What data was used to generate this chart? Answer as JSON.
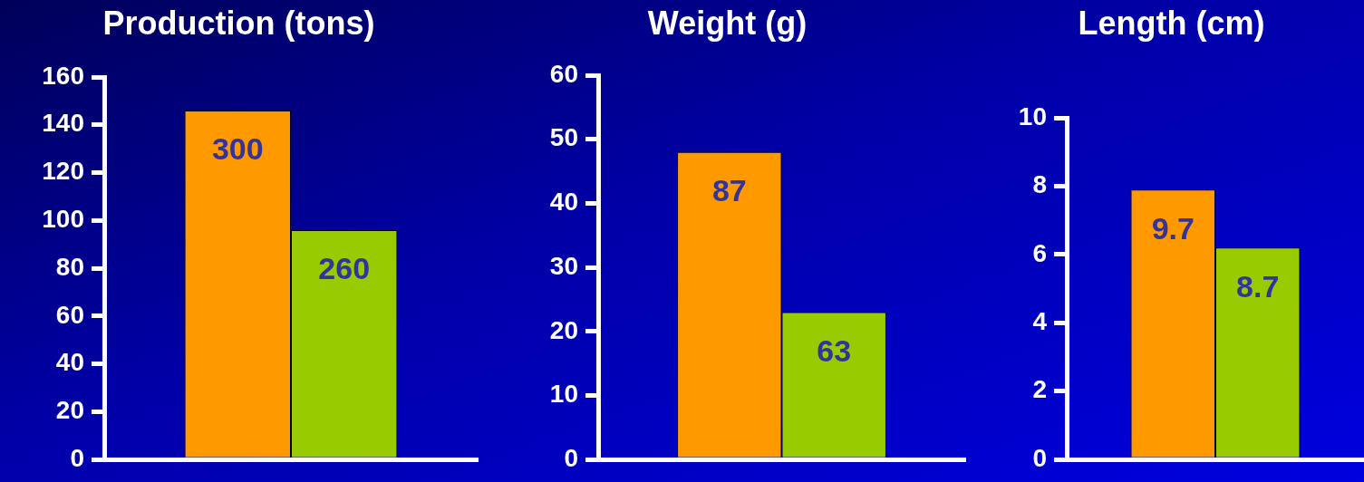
{
  "chart_data": [
    {
      "type": "bar",
      "title": "Production (tons)",
      "categories": [
        null,
        null
      ],
      "values": [
        146,
        96
      ],
      "colors": [
        "#ff9900",
        "#99cc00"
      ],
      "annotations": [
        {
          "text": "300",
          "y": 146
        },
        {
          "text": "260",
          "y": 96
        }
      ],
      "ylim": [
        0,
        160
      ],
      "yticks": [
        0,
        20,
        40,
        60,
        80,
        100,
        120,
        140,
        160
      ]
    },
    {
      "type": "bar",
      "title": "Weight (g)",
      "categories": [
        null,
        null
      ],
      "values": [
        48,
        23
      ],
      "colors": [
        "#ff9900",
        "#99cc00"
      ],
      "annotations": [
        {
          "text": "87",
          "y": 48
        },
        {
          "text": "63",
          "y": 23
        }
      ],
      "ylim": [
        0,
        60
      ],
      "yticks": [
        0,
        10,
        20,
        30,
        40,
        50,
        60
      ]
    },
    {
      "type": "bar",
      "title": "Length (cm)",
      "categories": [
        null,
        null
      ],
      "values": [
        7.9,
        6.2
      ],
      "colors": [
        "#ff9900",
        "#99cc00"
      ],
      "annotations": [
        {
          "text": "9.7",
          "y": 7.9
        },
        {
          "text": "8.7",
          "y": 6.2
        }
      ],
      "ylim": [
        0,
        10
      ],
      "yticks": [
        0,
        2,
        4,
        6,
        8,
        10
      ]
    }
  ]
}
